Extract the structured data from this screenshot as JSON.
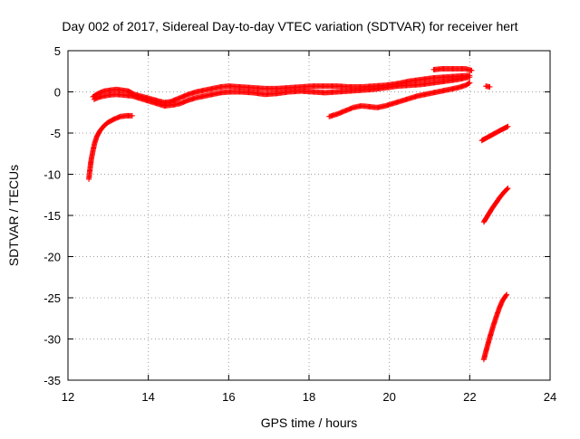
{
  "chart_data": {
    "type": "scatter",
    "title": "Day 002 of 2017, Sidereal Day-to-day VTEC variation (SDTVAR) for receiver hert",
    "xlabel": "GPS time / hours",
    "ylabel": "SDTVAR / TECUs",
    "xlim": [
      12,
      24
    ],
    "ylim": [
      -35,
      5
    ],
    "xticks": [
      12,
      14,
      16,
      18,
      20,
      22,
      24
    ],
    "yticks": [
      5,
      0,
      -5,
      -10,
      -15,
      -20,
      -25,
      -30,
      -35
    ],
    "grid": true,
    "legend": "none",
    "marker": "plus",
    "color": "#ff0000",
    "series": [
      {
        "segments": [
          [
            [
              12.52,
              -10.6
            ],
            [
              12.55,
              -9.3
            ],
            [
              12.58,
              -8.2
            ],
            [
              12.62,
              -7.2
            ],
            [
              12.66,
              -6.3
            ],
            [
              12.72,
              -5.4
            ],
            [
              12.8,
              -4.7
            ],
            [
              12.9,
              -4.1
            ],
            [
              13.0,
              -3.7
            ],
            [
              13.15,
              -3.3
            ],
            [
              13.3,
              -3.0
            ],
            [
              13.45,
              -2.9
            ],
            [
              13.6,
              -2.9
            ]
          ],
          [
            [
              12.62,
              -0.6
            ],
            [
              12.75,
              -0.2
            ],
            [
              12.9,
              0.1
            ],
            [
              13.05,
              0.2
            ],
            [
              13.2,
              0.3
            ],
            [
              13.35,
              0.2
            ],
            [
              13.5,
              0.1
            ],
            [
              13.65,
              -0.3
            ],
            [
              13.8,
              -0.5
            ],
            [
              13.95,
              -0.7
            ],
            [
              14.1,
              -0.9
            ],
            [
              14.25,
              -1.1
            ],
            [
              14.4,
              -1.3
            ],
            [
              14.55,
              -1.2
            ],
            [
              14.7,
              -0.9
            ],
            [
              14.85,
              -0.6
            ],
            [
              15.0,
              -0.3
            ],
            [
              15.2,
              0.0
            ],
            [
              15.4,
              0.2
            ],
            [
              15.6,
              0.4
            ],
            [
              15.8,
              0.6
            ],
            [
              16.0,
              0.7
            ],
            [
              16.3,
              0.6
            ],
            [
              16.6,
              0.5
            ],
            [
              16.9,
              0.4
            ],
            [
              17.2,
              0.4
            ],
            [
              17.5,
              0.5
            ],
            [
              17.8,
              0.6
            ],
            [
              18.1,
              0.7
            ],
            [
              18.4,
              0.7
            ],
            [
              18.7,
              0.7
            ],
            [
              19.0,
              0.6
            ],
            [
              19.3,
              0.6
            ],
            [
              19.6,
              0.7
            ],
            [
              19.9,
              0.8
            ],
            [
              20.2,
              1.0
            ],
            [
              20.5,
              1.3
            ],
            [
              20.8,
              1.5
            ],
            [
              21.1,
              1.7
            ],
            [
              21.4,
              1.8
            ],
            [
              21.7,
              1.9
            ],
            [
              22.0,
              2.0
            ]
          ],
          [
            [
              12.65,
              -0.9
            ],
            [
              12.8,
              -0.6
            ],
            [
              13.0,
              -0.4
            ],
            [
              13.2,
              -0.3
            ],
            [
              13.4,
              -0.4
            ],
            [
              13.6,
              -0.5
            ],
            [
              13.8,
              -0.8
            ],
            [
              14.0,
              -1.1
            ],
            [
              14.2,
              -1.4
            ],
            [
              14.4,
              -1.7
            ],
            [
              14.6,
              -1.6
            ],
            [
              14.8,
              -1.4
            ],
            [
              15.0,
              -1.0
            ],
            [
              15.2,
              -0.7
            ],
            [
              15.4,
              -0.5
            ],
            [
              15.6,
              -0.3
            ],
            [
              15.8,
              -0.1
            ],
            [
              16.0,
              0.0
            ],
            [
              16.3,
              0.0
            ],
            [
              16.6,
              -0.1
            ],
            [
              16.9,
              -0.3
            ],
            [
              17.2,
              -0.2
            ],
            [
              17.5,
              0.0
            ],
            [
              17.8,
              0.1
            ],
            [
              18.1,
              0.0
            ],
            [
              18.4,
              -0.1
            ],
            [
              18.7,
              0.0
            ],
            [
              19.0,
              0.1
            ],
            [
              19.3,
              0.2
            ],
            [
              19.6,
              0.3
            ],
            [
              19.9,
              0.5
            ],
            [
              20.2,
              0.7
            ],
            [
              20.5,
              0.8
            ],
            [
              20.8,
              0.9
            ],
            [
              21.1,
              1.1
            ],
            [
              21.4,
              1.3
            ],
            [
              21.7,
              1.5
            ],
            [
              22.0,
              1.8
            ]
          ],
          [
            [
              18.5,
              -3.0
            ],
            [
              18.7,
              -2.7
            ],
            [
              18.9,
              -2.3
            ],
            [
              19.1,
              -1.9
            ],
            [
              19.3,
              -1.7
            ],
            [
              19.5,
              -1.8
            ],
            [
              19.7,
              -1.9
            ],
            [
              19.9,
              -1.7
            ],
            [
              20.1,
              -1.4
            ],
            [
              20.3,
              -1.1
            ],
            [
              20.5,
              -0.8
            ],
            [
              20.7,
              -0.5
            ],
            [
              20.9,
              -0.3
            ],
            [
              21.1,
              -0.1
            ],
            [
              21.3,
              0.1
            ],
            [
              21.5,
              0.3
            ],
            [
              21.7,
              0.5
            ],
            [
              21.9,
              0.8
            ],
            [
              22.0,
              1.1
            ]
          ],
          [
            [
              21.1,
              2.7
            ],
            [
              21.3,
              2.8
            ],
            [
              21.5,
              2.8
            ],
            [
              21.7,
              2.8
            ],
            [
              21.9,
              2.8
            ],
            [
              22.05,
              2.6
            ]
          ],
          [
            [
              22.4,
              0.7
            ],
            [
              22.5,
              0.6
            ]
          ],
          [
            [
              22.3,
              -5.9
            ],
            [
              22.45,
              -5.5
            ],
            [
              22.6,
              -5.1
            ],
            [
              22.75,
              -4.7
            ],
            [
              22.95,
              -4.2
            ]
          ],
          [
            [
              22.35,
              -15.8
            ],
            [
              22.45,
              -15.0
            ],
            [
              22.55,
              -14.2
            ],
            [
              22.65,
              -13.5
            ],
            [
              22.75,
              -12.8
            ],
            [
              22.85,
              -12.2
            ],
            [
              22.95,
              -11.7
            ]
          ],
          [
            [
              22.35,
              -32.5
            ],
            [
              22.42,
              -31.2
            ],
            [
              22.5,
              -29.8
            ],
            [
              22.58,
              -28.5
            ],
            [
              22.66,
              -27.3
            ],
            [
              22.74,
              -26.2
            ],
            [
              22.82,
              -25.3
            ],
            [
              22.92,
              -24.6
            ]
          ]
        ]
      }
    ]
  }
}
